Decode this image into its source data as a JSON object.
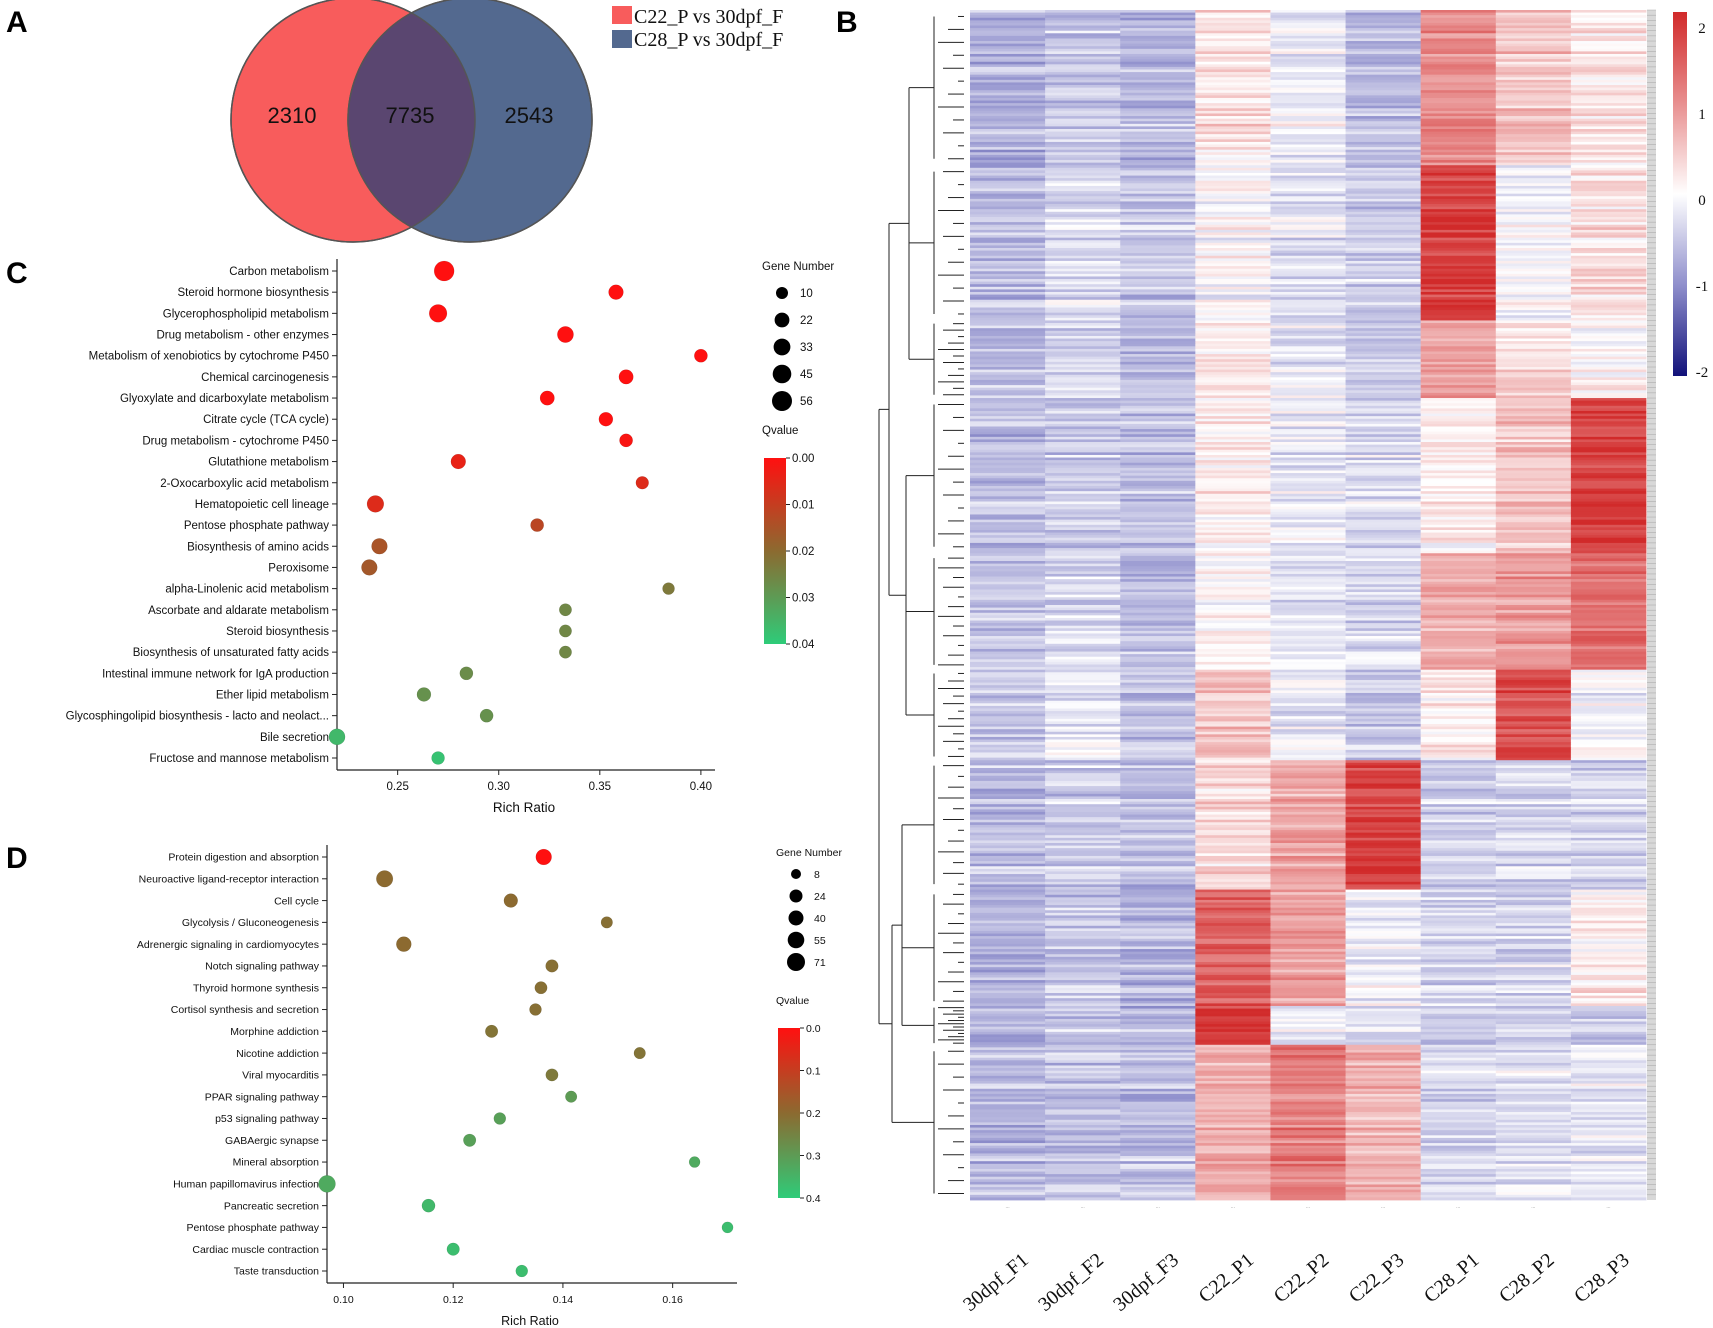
{
  "panel_labels": {
    "A": "A",
    "B": "B",
    "C": "C",
    "D": "D"
  },
  "venn": {
    "left_only": "2310",
    "overlap": "7735",
    "right_only": "2543",
    "legend": [
      {
        "label": "C22_P vs 30dpf_F",
        "color": "#f85c5c"
      },
      {
        "label": "C28_P vs 30dpf_F",
        "color": "#53698f"
      }
    ]
  },
  "chart_data": [
    {
      "id": "C",
      "type": "scatter",
      "xlabel": "Rich Ratio",
      "xlim": [
        0.22,
        0.405
      ],
      "xticks": [
        0.25,
        0.3,
        0.35,
        0.4
      ],
      "xtick_labels": [
        "0.25",
        "0.30",
        "0.35",
        "0.40"
      ],
      "size_legend_title": "Gene Number",
      "size_legend": [
        10,
        22,
        33,
        45,
        56
      ],
      "color_legend_title": "Qvalue",
      "color_range": [
        0.0,
        0.04
      ],
      "color_ticks": [
        "0.00",
        "0.01",
        "0.02",
        "0.03",
        "0.04"
      ],
      "categories": [
        "Carbon metabolism",
        "Steroid hormone biosynthesis",
        "Glycerophospholipid metabolism",
        "Drug metabolism - other enzymes",
        "Metabolism of xenobiotics by cytochrome P450",
        "Chemical carcinogenesis",
        "Glyoxylate and dicarboxylate metabolism",
        "Citrate cycle (TCA cycle)",
        "Drug metabolism - cytochrome P450",
        "Glutathione metabolism",
        "2-Oxocarboxylic acid metabolism",
        "Hematopoietic cell lineage",
        "Pentose phosphate pathway",
        "Biosynthesis of amino acids",
        "Peroxisome",
        "alpha-Linolenic acid metabolism",
        "Ascorbate and aldarate metabolism",
        "Steroid biosynthesis",
        "Biosynthesis of unsaturated fatty acids",
        "Intestinal immune network for IgA production",
        "Ether lipid metabolism",
        "Glycosphingolipid biosynthesis - lacto and neolact...",
        "Bile secretion",
        "Fructose and mannose metabolism"
      ],
      "x": [
        0.273,
        0.358,
        0.27,
        0.333,
        0.4,
        0.363,
        0.324,
        0.353,
        0.363,
        0.28,
        0.371,
        0.239,
        0.319,
        0.241,
        0.236,
        0.384,
        0.333,
        0.333,
        0.333,
        0.284,
        0.263,
        0.294,
        0.22,
        0.27
      ],
      "gene_number": [
        56,
        22,
        40,
        30,
        15,
        20,
        20,
        18,
        15,
        22,
        13,
        33,
        15,
        28,
        28,
        10,
        12,
        12,
        12,
        15,
        18,
        15,
        30,
        14
      ],
      "qvalue": [
        0.0,
        0.0,
        0.0,
        0.0,
        0.0,
        0.0,
        0.0,
        0.0,
        0.001,
        0.004,
        0.006,
        0.006,
        0.012,
        0.015,
        0.016,
        0.023,
        0.026,
        0.026,
        0.026,
        0.027,
        0.028,
        0.028,
        0.036,
        0.038
      ]
    },
    {
      "id": "D",
      "type": "scatter",
      "xlabel": "Rich Ratio",
      "xlim": [
        0.097,
        0.171
      ],
      "xticks": [
        0.1,
        0.12,
        0.14,
        0.16
      ],
      "xtick_labels": [
        "0.10",
        "0.12",
        "0.14",
        "0.16"
      ],
      "size_legend_title": "Gene Number",
      "size_legend": [
        8,
        24,
        40,
        55,
        71
      ],
      "color_legend_title": "Qvalue",
      "color_range": [
        0.0,
        0.4
      ],
      "color_ticks": [
        "0.0",
        "0.1",
        "0.2",
        "0.3",
        "0.4"
      ],
      "categories": [
        "Protein digestion and absorption",
        "Neuroactive ligand-receptor interaction",
        "Cell cycle",
        "Glycolysis / Gluconeogenesis",
        "Adrenergic signaling in cardiomyocytes",
        "Notch signaling pathway",
        "Thyroid hormone synthesis",
        "Cortisol synthesis and secretion",
        "Morphine addiction",
        "Nicotine addiction",
        "Viral myocarditis",
        "PPAR signaling pathway",
        "p53 signaling pathway",
        "GABAergic synapse",
        "Mineral absorption",
        "Human papillomavirus infection",
        "Pancreatic secretion",
        "Pentose phosphate pathway",
        "Cardiac muscle contraction",
        "Taste transduction"
      ],
      "x": [
        0.1365,
        0.1075,
        0.1305,
        0.148,
        0.111,
        0.138,
        0.136,
        0.135,
        0.127,
        0.154,
        0.138,
        0.1415,
        0.1285,
        0.123,
        0.164,
        0.097,
        0.1155,
        0.17,
        0.12,
        0.1325
      ],
      "gene_number": [
        48,
        55,
        30,
        16,
        40,
        22,
        20,
        18,
        22,
        16,
        20,
        16,
        18,
        22,
        12,
        60,
        25,
        13,
        22,
        18
      ],
      "qvalue": [
        0.0,
        0.2,
        0.2,
        0.21,
        0.2,
        0.21,
        0.21,
        0.21,
        0.22,
        0.22,
        0.23,
        0.3,
        0.31,
        0.31,
        0.33,
        0.33,
        0.36,
        0.37,
        0.37,
        0.37
      ]
    },
    {
      "id": "B",
      "type": "heatmap",
      "samples": [
        "30dpf_F1",
        "30dpf_F2",
        "30dpf_F3",
        "C22_P1",
        "C22_P2",
        "C22_P3",
        "C28_P1",
        "C28_P2",
        "C28_P3"
      ],
      "color_scale_ticks": [
        "2",
        "1",
        "0",
        "-1",
        "-2"
      ],
      "color_range": [
        -2,
        2
      ],
      "cluster_blocks": [
        {
          "rows": 60,
          "values": [
            -0.65,
            -0.45,
            -0.6,
            0.3,
            -0.1,
            -0.55,
            1.1,
            0.6,
            0.3
          ]
        },
        {
          "rows": 60,
          "values": [
            -0.6,
            -0.3,
            -0.5,
            0.0,
            -0.25,
            -0.45,
            1.8,
            -0.1,
            0.3
          ]
        },
        {
          "rows": 30,
          "values": [
            -0.55,
            -0.35,
            -0.55,
            0.25,
            -0.15,
            -0.45,
            0.9,
            0.4,
            0.1
          ]
        },
        {
          "rows": 60,
          "values": [
            -0.6,
            -0.45,
            -0.55,
            0.15,
            -0.2,
            -0.3,
            0.15,
            0.5,
            1.75
          ]
        },
        {
          "rows": 45,
          "values": [
            -0.55,
            -0.35,
            -0.6,
            0.05,
            -0.25,
            -0.35,
            0.7,
            0.9,
            1.3
          ]
        },
        {
          "rows": 35,
          "values": [
            -0.5,
            -0.25,
            -0.55,
            0.5,
            -0.2,
            -0.5,
            0.15,
            1.6,
            -0.1
          ]
        },
        {
          "rows": 50,
          "values": [
            -0.6,
            -0.45,
            -0.6,
            0.35,
            0.8,
            1.75,
            -0.45,
            -0.35,
            -0.4
          ]
        },
        {
          "rows": 45,
          "values": [
            -0.6,
            -0.45,
            -0.6,
            1.5,
            0.9,
            -0.1,
            -0.35,
            -0.35,
            0.2
          ]
        },
        {
          "rows": 15,
          "values": [
            -0.6,
            -0.5,
            -0.6,
            1.9,
            -0.1,
            -0.2,
            -0.4,
            -0.3,
            -0.4
          ]
        },
        {
          "rows": 60,
          "values": [
            -0.6,
            -0.5,
            -0.55,
            0.7,
            1.2,
            0.7,
            -0.35,
            -0.25,
            -0.2
          ]
        }
      ]
    }
  ]
}
